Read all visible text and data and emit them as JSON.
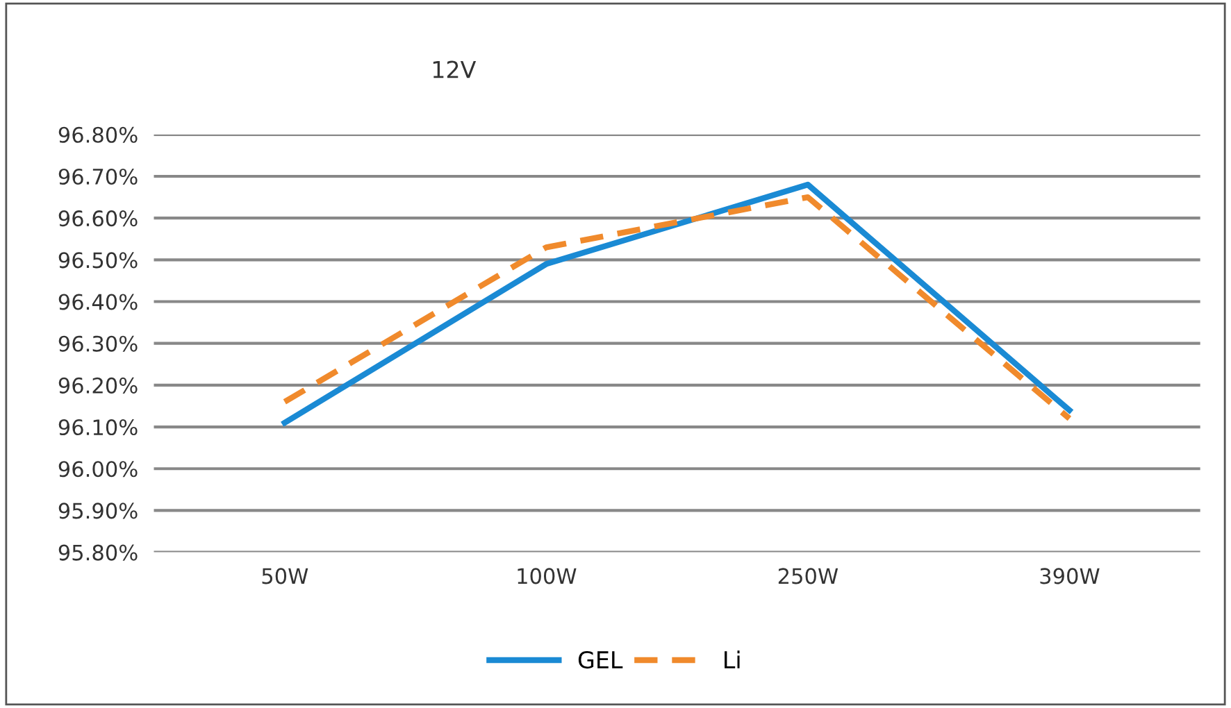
{
  "chart_data": {
    "type": "line",
    "title": "12V",
    "categories": [
      "50W",
      "100W",
      "250W",
      "390W"
    ],
    "series": [
      {
        "name": "GEL",
        "color": "#1a8ad4",
        "values": [
          96.11,
          96.49,
          96.68,
          96.14
        ],
        "line_style": "solid"
      },
      {
        "name": "Li",
        "color": "#f08a2c",
        "values": [
          96.16,
          96.53,
          96.65,
          96.12
        ],
        "line_style": "dashed"
      }
    ],
    "ylim": [
      95.8,
      96.8
    ],
    "yticks": [
      {
        "value": 95.8,
        "label": "95.80%"
      },
      {
        "value": 95.9,
        "label": "95.90%"
      },
      {
        "value": 96.0,
        "label": "96.00%"
      },
      {
        "value": 96.1,
        "label": "96.10%"
      },
      {
        "value": 96.2,
        "label": "96.20%"
      },
      {
        "value": 96.3,
        "label": "96.30%"
      },
      {
        "value": 96.4,
        "label": "96.40%"
      },
      {
        "value": 96.5,
        "label": "96.50%"
      },
      {
        "value": 96.6,
        "label": "96.60%"
      },
      {
        "value": 96.7,
        "label": "96.70%"
      },
      {
        "value": 96.8,
        "label": "96.80%"
      }
    ],
    "grid": "y",
    "legend": "bottom",
    "marker": "none"
  }
}
